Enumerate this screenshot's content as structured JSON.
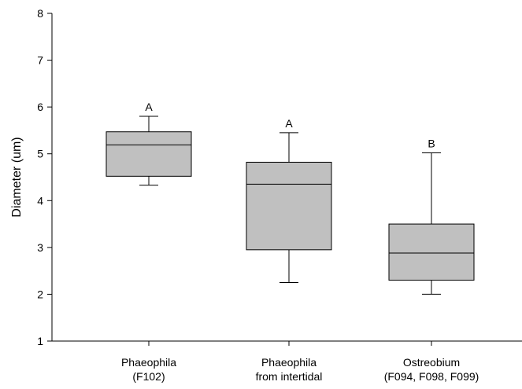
{
  "chart_data": {
    "type": "box",
    "title": "",
    "xlabel": "",
    "ylabel": "Diameter (um)",
    "ylim": [
      1,
      8
    ],
    "yticks": [
      1,
      2,
      3,
      4,
      5,
      6,
      7,
      8
    ],
    "grid": false,
    "legend": "none",
    "box_color": "#c0c0c0",
    "categories": [
      {
        "lines": [
          "Phaeophila",
          "(F102)"
        ],
        "letter": "A",
        "whisker_low": 4.33,
        "q1": 4.52,
        "median": 5.19,
        "q3": 5.47,
        "whisker_high": 5.8
      },
      {
        "lines": [
          "Phaeophila",
          "from intertidal"
        ],
        "letter": "A",
        "whisker_low": 2.25,
        "q1": 2.95,
        "median": 4.35,
        "q3": 4.82,
        "whisker_high": 5.45
      },
      {
        "lines": [
          "Ostreobium",
          "(F094, F098, F099)"
        ],
        "letter": "B",
        "whisker_low": 2.0,
        "q1": 2.3,
        "median": 2.88,
        "q3": 3.5,
        "whisker_high": 5.02
      }
    ]
  }
}
